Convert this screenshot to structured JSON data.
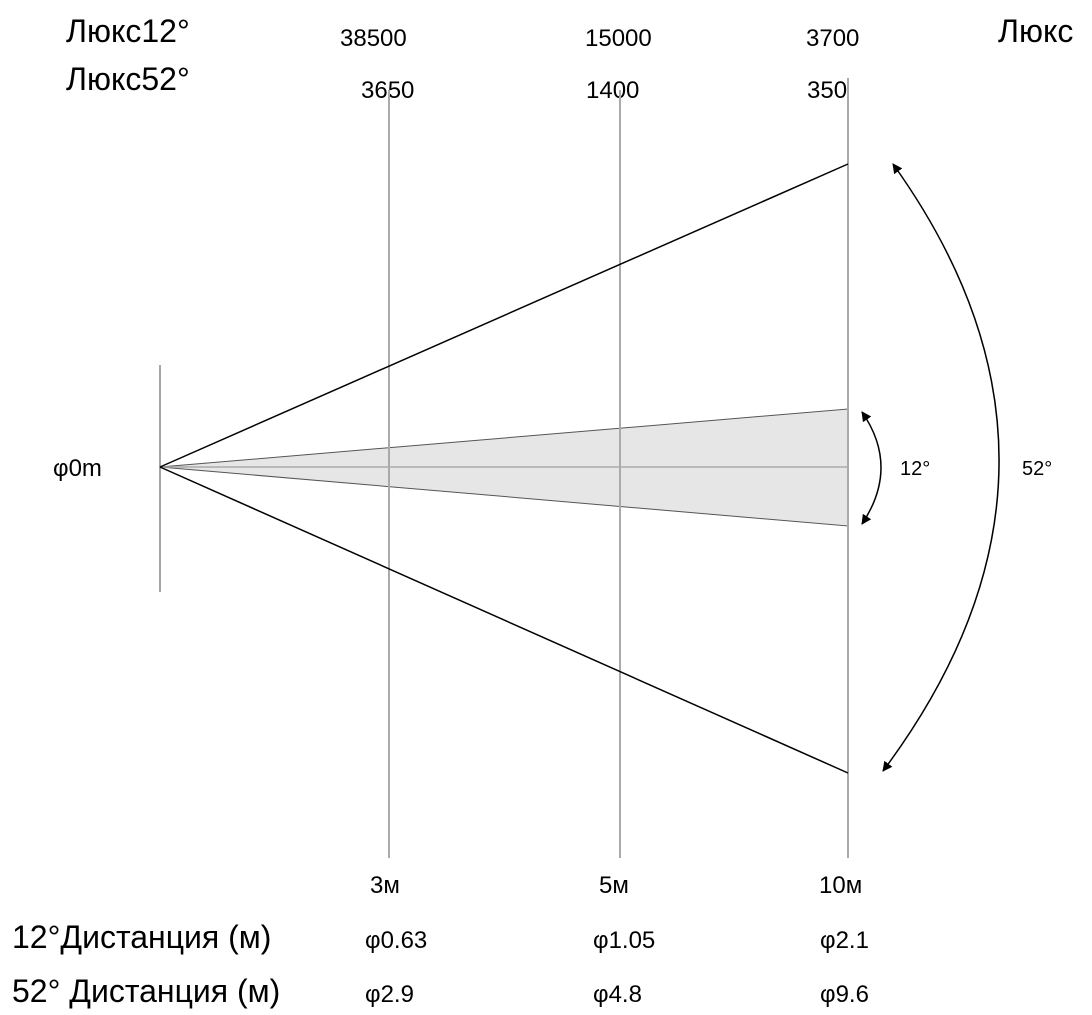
{
  "lux_rows": [
    {
      "label": "Люкс12°",
      "values": [
        "38500",
        "15000",
        "3700"
      ],
      "right_label": "Люкс"
    },
    {
      "label": "Люкс52°",
      "values": [
        "3650",
        "1400",
        "350"
      ]
    }
  ],
  "distances": [
    "3м",
    "5м",
    "10м"
  ],
  "origin_label": "φ0m",
  "beams": [
    {
      "angle_label": "12°",
      "angle_deg": 12
    },
    {
      "angle_label": "52°",
      "angle_deg": 52
    }
  ],
  "diameter_rows": [
    {
      "label": "12°Дистанция (м)",
      "values": [
        "φ0.63",
        "φ1.05",
        "φ2.1"
      ]
    },
    {
      "label": "52° Дистанция (м)",
      "values": [
        "φ2.9",
        "φ4.8",
        "φ9.6"
      ]
    }
  ],
  "colors": {
    "narrow_beam_fill": "#e6e6e6",
    "guide_line": "#aaaaaa",
    "edge_line": "#000000"
  }
}
